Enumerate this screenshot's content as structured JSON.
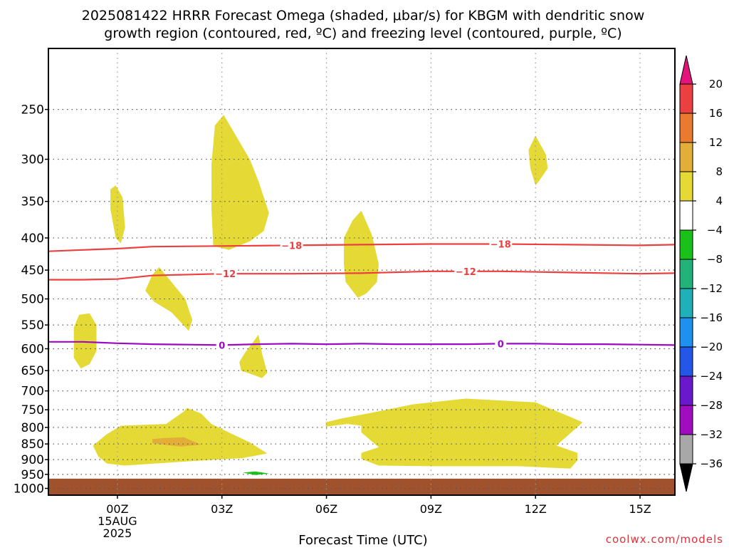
{
  "chart_data": {
    "type": "contour",
    "title_line1": "2025081422 HRRR Forecast Omega (shaded, μbar/s) for KBGM with dendritic snow",
    "title_line2": "growth region (contoured, red, ºC) and freezing level (contoured, purple, ºC)",
    "xlabel": "Forecast Time (UTC)",
    "watermark": "coolwx.com/models",
    "x_range_hours": [
      -1.98,
      16.0
    ],
    "x_ticks": [
      {
        "hour": 0,
        "label": "00Z",
        "sub1": "15AUG",
        "sub2": "2025"
      },
      {
        "hour": 3,
        "label": "03Z",
        "sub1": "",
        "sub2": ""
      },
      {
        "hour": 6,
        "label": "06Z",
        "sub1": "",
        "sub2": ""
      },
      {
        "hour": 9,
        "label": "09Z",
        "sub1": "",
        "sub2": ""
      },
      {
        "hour": 12,
        "label": "12Z",
        "sub1": "",
        "sub2": ""
      },
      {
        "hour": 15,
        "label": "15Z",
        "sub1": "",
        "sub2": ""
      }
    ],
    "y_range_hpa": [
      200,
      1025
    ],
    "y_scale": "log",
    "y_ticks": [
      250,
      300,
      350,
      400,
      450,
      500,
      550,
      600,
      650,
      700,
      750,
      800,
      850,
      900,
      950,
      1000
    ],
    "grid": true,
    "ground_pressure_hpa": 965,
    "ground_color": "#a0522d",
    "colorbar": {
      "labels": [
        "20",
        "16",
        "12",
        "8",
        "4",
        "−4",
        "−8",
        "−12",
        "−16",
        "−20",
        "−24",
        "−28",
        "−32",
        "−36"
      ],
      "colors": [
        "#ec3f3f",
        "#ea7a2d",
        "#e2ae38",
        "#e5da35",
        "#ffffff",
        "#19c119",
        "#21b37a",
        "#1fb0b9",
        "#1e90f0",
        "#2456e8",
        "#6a18cc",
        "#a00cc0",
        "#a8a8a8"
      ],
      "top_color": "#e4137c",
      "bottom_color": "#000000"
    },
    "contours": [
      {
        "name": "DGZ",
        "label": "−18",
        "color": "#ec3f3f",
        "points": [
          [
            -1.98,
            420
          ],
          [
            -1,
            418
          ],
          [
            0,
            416
          ],
          [
            1,
            413
          ],
          [
            3,
            412
          ],
          [
            5,
            411
          ],
          [
            7,
            410
          ],
          [
            9,
            409
          ],
          [
            11,
            409
          ],
          [
            13,
            410
          ],
          [
            15,
            411
          ],
          [
            16,
            410
          ]
        ],
        "label_hours": [
          5.0,
          11.0
        ]
      },
      {
        "name": "DGZ",
        "label": "−12",
        "color": "#ec3f3f",
        "points": [
          [
            -1.98,
            466
          ],
          [
            -1,
            466
          ],
          [
            0,
            465
          ],
          [
            1,
            459
          ],
          [
            3,
            456
          ],
          [
            5,
            456
          ],
          [
            7,
            455
          ],
          [
            9,
            452
          ],
          [
            11,
            452
          ],
          [
            13,
            454
          ],
          [
            15,
            456
          ],
          [
            16,
            455
          ]
        ],
        "label_hours": [
          3.1,
          10.0
        ]
      },
      {
        "name": "freezing level",
        "label": "0",
        "color": "#9a0ac4",
        "points": [
          [
            -1.98,
            585
          ],
          [
            -1,
            585
          ],
          [
            0,
            588
          ],
          [
            1,
            590
          ],
          [
            2,
            591
          ],
          [
            3,
            592
          ],
          [
            4,
            590
          ],
          [
            5,
            589
          ],
          [
            6,
            590
          ],
          [
            7,
            589
          ],
          [
            8,
            590
          ],
          [
            9,
            590
          ],
          [
            10,
            590
          ],
          [
            11,
            589
          ],
          [
            12,
            589
          ],
          [
            13,
            590
          ],
          [
            14,
            590
          ],
          [
            15,
            591
          ],
          [
            16,
            592
          ]
        ],
        "label_hours": [
          3.0,
          11.0
        ]
      }
    ],
    "omega_regions": [
      {
        "value": 4,
        "color": "#e5da35",
        "points": [
          [
            -1.25,
            555
          ],
          [
            -1.1,
            530
          ],
          [
            -0.8,
            527
          ],
          [
            -0.6,
            550
          ],
          [
            -0.6,
            605
          ],
          [
            -0.8,
            635
          ],
          [
            -1.05,
            645
          ],
          [
            -1.25,
            620
          ]
        ]
      },
      {
        "value": 4,
        "color": "#e5da35",
        "points": [
          [
            -0.2,
            335
          ],
          [
            -0.05,
            330
          ],
          [
            0.15,
            345
          ],
          [
            0.22,
            385
          ],
          [
            0.1,
            408
          ],
          [
            -0.05,
            400
          ],
          [
            -0.2,
            360
          ]
        ]
      },
      {
        "value": 4,
        "color": "#e5da35",
        "points": [
          [
            0.8,
            485
          ],
          [
            1.0,
            458
          ],
          [
            1.2,
            445
          ],
          [
            1.55,
            470
          ],
          [
            1.95,
            500
          ],
          [
            2.15,
            540
          ],
          [
            2.05,
            562
          ],
          [
            1.55,
            525
          ],
          [
            1.05,
            505
          ]
        ]
      },
      {
        "value": 4,
        "color": "#e5da35",
        "points": [
          [
            2.7,
            305
          ],
          [
            2.8,
            265
          ],
          [
            3.05,
            255
          ],
          [
            3.4,
            275
          ],
          [
            3.8,
            300
          ],
          [
            4.05,
            325
          ],
          [
            4.35,
            365
          ],
          [
            4.2,
            390
          ],
          [
            3.8,
            405
          ],
          [
            3.2,
            418
          ],
          [
            2.75,
            412
          ],
          [
            2.7,
            360
          ]
        ]
      },
      {
        "value": 4,
        "color": "#e5da35",
        "points": [
          [
            3.5,
            630
          ],
          [
            3.65,
            610
          ],
          [
            3.9,
            585
          ],
          [
            4.05,
            570
          ],
          [
            4.15,
            610
          ],
          [
            4.3,
            655
          ],
          [
            4.15,
            668
          ],
          [
            3.9,
            660
          ],
          [
            3.55,
            650
          ]
        ]
      },
      {
        "value": 4,
        "color": "#e5da35",
        "points": [
          [
            6.5,
            400
          ],
          [
            6.75,
            375
          ],
          [
            7.0,
            362
          ],
          [
            7.3,
            395
          ],
          [
            7.5,
            440
          ],
          [
            7.45,
            470
          ],
          [
            7.15,
            490
          ],
          [
            6.9,
            498
          ],
          [
            6.55,
            470
          ],
          [
            6.5,
            440
          ]
        ]
      },
      {
        "value": 4,
        "color": "#e5da35",
        "points": [
          [
            11.8,
            290
          ],
          [
            12.0,
            275
          ],
          [
            12.3,
            295
          ],
          [
            12.35,
            310
          ],
          [
            12.1,
            325
          ],
          [
            12.0,
            330
          ],
          [
            11.85,
            310
          ]
        ]
      },
      {
        "value": 4,
        "color": "#e5da35",
        "points": [
          [
            -0.7,
            855
          ],
          [
            -0.3,
            820
          ],
          [
            0.1,
            795
          ],
          [
            1.4,
            790
          ],
          [
            1.9,
            755
          ],
          [
            2.0,
            745
          ],
          [
            2.4,
            760
          ],
          [
            2.7,
            790
          ],
          [
            3.2,
            815
          ],
          [
            3.8,
            845
          ],
          [
            4.3,
            880
          ],
          [
            3.6,
            895
          ],
          [
            2.4,
            903
          ],
          [
            1.2,
            912
          ],
          [
            0.2,
            920
          ],
          [
            -0.3,
            913
          ],
          [
            -0.55,
            890
          ]
        ]
      },
      {
        "value": 4,
        "color": "#e5da35",
        "points": [
          [
            5.98,
            785
          ],
          [
            6.4,
            775
          ],
          [
            7.2,
            760
          ],
          [
            8.5,
            735
          ],
          [
            9.5,
            725
          ],
          [
            10.0,
            720
          ],
          [
            11.0,
            725
          ],
          [
            12.0,
            730
          ],
          [
            13.0,
            770
          ],
          [
            13.35,
            785
          ],
          [
            13.3,
            790
          ],
          [
            12.6,
            855
          ],
          [
            13.2,
            878
          ],
          [
            13.2,
            903
          ],
          [
            13.0,
            930
          ],
          [
            11.5,
            922
          ],
          [
            9.0,
            922
          ],
          [
            7.5,
            920
          ],
          [
            7.0,
            898
          ],
          [
            7.0,
            878
          ],
          [
            7.5,
            860
          ],
          [
            7.0,
            815
          ],
          [
            7.0,
            795
          ],
          [
            6.6,
            790
          ],
          [
            5.98,
            798
          ]
        ]
      },
      {
        "value": 8,
        "color": "#e2ae38",
        "points": [
          [
            1.0,
            835
          ],
          [
            1.3,
            832
          ],
          [
            1.9,
            829
          ],
          [
            2.4,
            852
          ],
          [
            1.8,
            858
          ],
          [
            1.0,
            848
          ]
        ]
      },
      {
        "value": -4,
        "color": "#19c119",
        "points": [
          [
            3.6,
            944
          ],
          [
            3.95,
            940
          ],
          [
            4.35,
            947
          ],
          [
            3.95,
            952
          ]
        ]
      }
    ]
  }
}
